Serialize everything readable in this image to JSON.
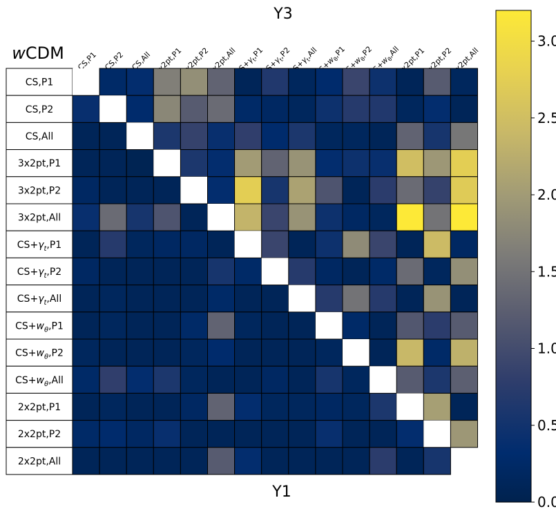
{
  "chart_data": {
    "type": "heatmap",
    "title_top": "Y3",
    "title_bottom": "Y1",
    "model_label_prefix": "w",
    "model_label_suffix": "CDM",
    "row_labels": [
      {
        "base": "CS,P1",
        "sym": null,
        "sub": null,
        "tail": null
      },
      {
        "base": "CS,P2",
        "sym": null,
        "sub": null,
        "tail": null
      },
      {
        "base": "CS,All",
        "sym": null,
        "sub": null,
        "tail": null
      },
      {
        "base": "3x2pt,P1",
        "sym": null,
        "sub": null,
        "tail": null
      },
      {
        "base": "3x2pt,P2",
        "sym": null,
        "sub": null,
        "tail": null
      },
      {
        "base": "3x2pt,All",
        "sym": null,
        "sub": null,
        "tail": null
      },
      {
        "base": "CS+",
        "sym": "γ",
        "sub": "t",
        "tail": ",P1"
      },
      {
        "base": "CS+",
        "sym": "γ",
        "sub": "t",
        "tail": ",P2"
      },
      {
        "base": "CS+",
        "sym": "γ",
        "sub": "t",
        "tail": ",All"
      },
      {
        "base": "CS+",
        "sym": "w",
        "sub": "θ",
        "tail": ",P1"
      },
      {
        "base": "CS+",
        "sym": "w",
        "sub": "θ",
        "tail": ",P2"
      },
      {
        "base": "CS+",
        "sym": "w",
        "sub": "θ",
        "tail": ",All"
      },
      {
        "base": "2x2pt,P1",
        "sym": null,
        "sub": null,
        "tail": null
      },
      {
        "base": "2x2pt,P2",
        "sym": null,
        "sub": null,
        "tail": null
      },
      {
        "base": "2x2pt,All",
        "sym": null,
        "sub": null,
        "tail": null
      }
    ],
    "matrix": [
      [
        null,
        0.25,
        0.35,
        1.65,
        1.85,
        1.3,
        0.1,
        0.65,
        0.15,
        0.3,
        0.9,
        0.45,
        0.1,
        1.2,
        0.15
      ],
      [
        0.4,
        null,
        0.3,
        1.75,
        1.2,
        1.4,
        0.25,
        0.2,
        0.15,
        0.45,
        0.7,
        0.65,
        0.15,
        0.35,
        0.1
      ],
      [
        0.1,
        0.1,
        null,
        0.6,
        0.85,
        0.4,
        0.8,
        0.3,
        0.6,
        0.15,
        0.15,
        0.1,
        1.3,
        0.55,
        1.55
      ],
      [
        0.1,
        0.1,
        0.05,
        null,
        0.6,
        0.35,
        2.0,
        1.3,
        1.9,
        0.35,
        0.45,
        0.4,
        2.5,
        1.95,
        2.75
      ],
      [
        0.2,
        0.1,
        0.1,
        0.1,
        null,
        0.35,
        2.75,
        0.55,
        2.1,
        1.1,
        0.1,
        0.75,
        1.4,
        0.85,
        2.7
      ],
      [
        0.4,
        1.4,
        0.55,
        1.1,
        0.1,
        null,
        2.35,
        0.9,
        1.9,
        0.45,
        0.2,
        0.15,
        3.2,
        1.5,
        3.2
      ],
      [
        0.1,
        0.7,
        0.15,
        0.2,
        0.2,
        0.1,
        null,
        0.9,
        0.1,
        0.45,
        1.8,
        0.9,
        0.1,
        2.45,
        0.2
      ],
      [
        0.2,
        0.1,
        0.1,
        0.1,
        0.1,
        0.55,
        0.25,
        null,
        0.7,
        0.2,
        0.1,
        0.25,
        1.4,
        0.15,
        1.85
      ],
      [
        0.1,
        0.15,
        0.1,
        0.1,
        0.1,
        0.25,
        0.1,
        0.1,
        null,
        0.7,
        1.5,
        0.7,
        0.1,
        1.9,
        0.1
      ],
      [
        0.1,
        0.15,
        0.1,
        0.1,
        0.25,
        1.3,
        0.15,
        0.1,
        0.1,
        null,
        0.25,
        0.1,
        1.15,
        0.75,
        1.2
      ],
      [
        0.15,
        0.1,
        0.1,
        0.1,
        0.15,
        0.3,
        0.1,
        0.1,
        0.1,
        0.15,
        null,
        0.1,
        2.4,
        0.25,
        2.3
      ],
      [
        0.25,
        0.8,
        0.35,
        0.6,
        0.15,
        0.1,
        0.1,
        0.2,
        0.1,
        0.55,
        0.15,
        null,
        1.2,
        0.6,
        1.25
      ],
      [
        0.1,
        0.15,
        0.1,
        0.1,
        0.2,
        1.3,
        0.35,
        0.15,
        0.15,
        0.2,
        0.15,
        0.6,
        null,
        2.05,
        0.1
      ],
      [
        0.25,
        0.3,
        0.2,
        0.4,
        0.1,
        0.1,
        0.1,
        0.1,
        0.1,
        0.4,
        0.1,
        0.1,
        0.35,
        null,
        1.95
      ],
      [
        0.1,
        0.1,
        0.1,
        0.1,
        0.1,
        1.2,
        0.35,
        0.1,
        0.1,
        0.1,
        0.1,
        0.75,
        0.1,
        0.55,
        null
      ]
    ],
    "colorbar": {
      "colormap": "cividis",
      "vmin": 0.0,
      "vmax": 3.2,
      "ticks": [
        0.0,
        0.5,
        1.0,
        1.5,
        2.0,
        2.5,
        3.0
      ],
      "tick_labels": [
        "0.0",
        "0.5",
        "1.0",
        "1.5",
        "2.0",
        "2.5",
        "3.0"
      ]
    },
    "diagonal_color": "#ffffff",
    "grid": true
  }
}
